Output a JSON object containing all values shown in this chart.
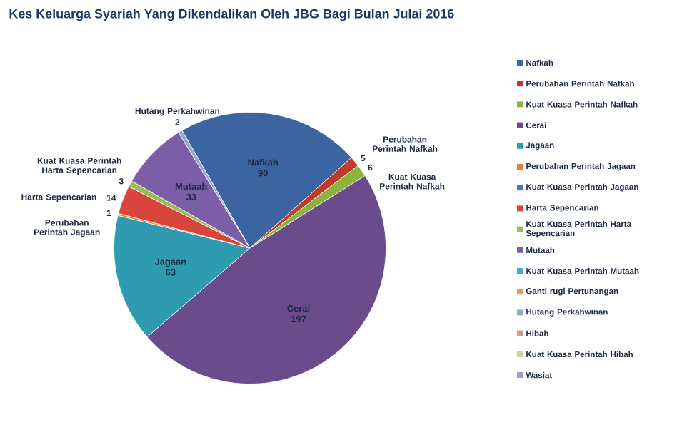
{
  "chart_data": {
    "type": "pie",
    "title": "Kes Keluarga Syariah Yang Dikendalikan Oleh JBG Bagi Bulan Julai 2016",
    "categories": [
      "Nafkah",
      "Perubahan Perintah Nafkah",
      "Kuat Kuasa Perintah Nafkah",
      "Cerai",
      "Jagaan",
      "Perubahan Perintah Jagaan",
      "Kuat Kuasa Perintah Jagaan",
      "Harta Sepencarian",
      "Kuat Kuasa Perintah Harta Sepencarian",
      "Mutaah",
      "Kuat Kuasa Perintah Mutaah",
      "Ganti rugi Pertunangan",
      "Hutang Perkahwinan",
      "Hibah",
      "Kuat Kuasa Perintah Hibah",
      "Wasiat"
    ],
    "values": [
      90,
      5,
      6,
      197,
      63,
      1,
      0,
      14,
      3,
      33,
      0,
      0,
      2,
      0,
      0,
      0
    ],
    "value_labels": [
      "90",
      "5",
      "6",
      "197",
      "63",
      "1",
      null,
      "14",
      "3",
      "33",
      null,
      null,
      "2",
      null,
      null,
      null
    ],
    "colors": [
      "#3b64a0",
      "#c0392b",
      "#8db33f",
      "#6a4c8c",
      "#2e9bb0",
      "#e8822a",
      "#4a78c0",
      "#d9453d",
      "#9bbb59",
      "#7b5ea7",
      "#4bacc6",
      "#f79646",
      "#95a9d0",
      "#d99694",
      "#c3d69b",
      "#a89bc0"
    ],
    "legend": "right"
  }
}
